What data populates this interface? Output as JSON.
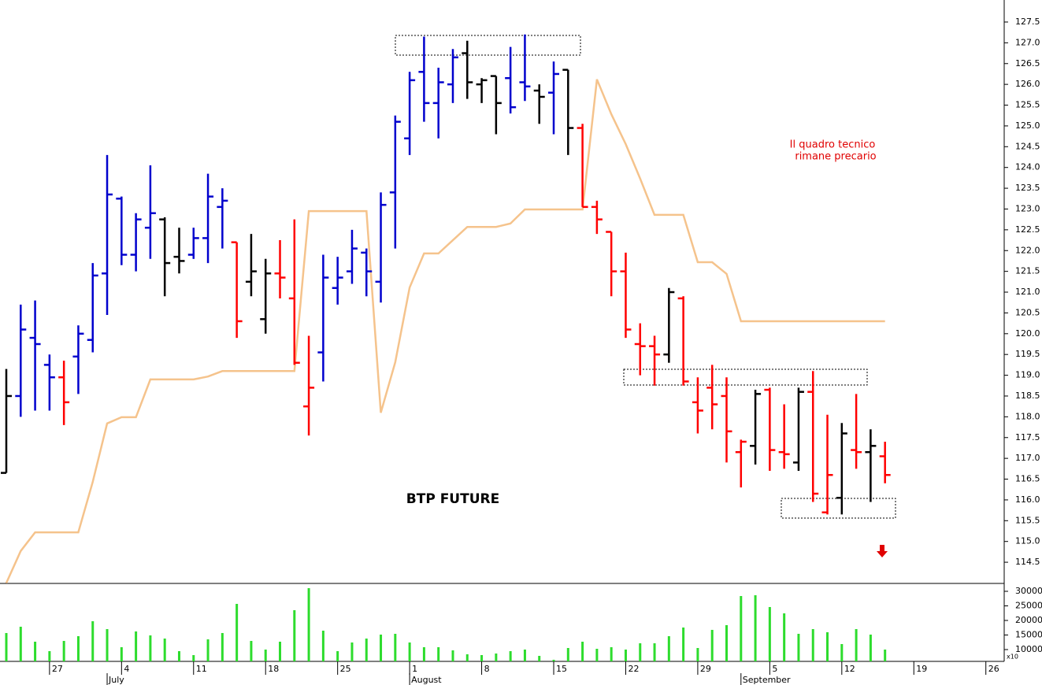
{
  "chart_data": [
    {
      "type": "ohlc",
      "title": "BTP FUTURE",
      "annotation": [
        "Il quadro tecnico",
        "rimane precario"
      ],
      "categories": [
        null,
        null,
        null,
        "27",
        null,
        null,
        null,
        null,
        "4",
        null,
        null,
        null,
        null,
        "11",
        null,
        null,
        null,
        null,
        "18",
        null,
        null,
        null,
        null,
        "25",
        null,
        null,
        null,
        null,
        "1",
        null,
        null,
        null,
        null,
        "8",
        null,
        null,
        null,
        null,
        "15",
        null,
        null,
        null,
        null,
        "22",
        null,
        null,
        null,
        null,
        "29",
        null,
        null,
        null,
        null,
        "5",
        null,
        null,
        null,
        null,
        "12",
        null,
        null,
        null,
        null,
        "19",
        null,
        null,
        null,
        null,
        "26",
        null
      ],
      "month_labels": [
        {
          "index": 7,
          "label": "July"
        },
        {
          "index": 28,
          "label": "August"
        },
        {
          "index": 51,
          "label": "September"
        }
      ],
      "open": [
        116.65,
        118.5,
        119.9,
        119.25,
        118.95,
        119.45,
        119.85,
        121.45,
        123.25,
        121.9,
        122.55,
        122.75,
        121.85,
        121.9,
        122.3,
        123.05,
        122.2,
        121.25,
        120.35,
        121.45,
        120.85,
        118.25,
        119.55,
        121.1,
        121.5,
        121.95,
        121.25,
        123.4,
        124.7,
        126.3,
        125.55,
        126.0,
        126.75,
        126.0,
        126.2,
        126.15,
        126.05,
        125.85,
        125.8,
        126.35,
        124.95,
        123.05,
        122.45,
        121.5,
        119.75,
        119.7,
        119.5,
        120.85,
        118.35,
        118.7,
        118.5,
        117.15,
        117.3,
        118.65,
        117.15,
        116.9,
        118.6,
        115.7,
        116.05,
        117.2,
        117.15,
        117.05,
        null,
        null,
        null,
        null,
        null,
        null,
        null,
        null
      ],
      "high": [
        119.15,
        120.7,
        120.8,
        119.5,
        119.35,
        120.2,
        121.7,
        124.3,
        123.3,
        122.9,
        124.05,
        122.8,
        122.55,
        122.55,
        123.85,
        123.5,
        122.2,
        122.4,
        121.8,
        122.25,
        122.75,
        119.95,
        121.9,
        121.85,
        122.5,
        122.05,
        123.4,
        125.25,
        126.3,
        127.15,
        126.4,
        126.85,
        127.05,
        126.15,
        126.2,
        126.9,
        127.2,
        126.0,
        126.55,
        126.35,
        125.05,
        123.2,
        122.45,
        121.95,
        120.25,
        119.95,
        121.1,
        120.9,
        118.95,
        119.25,
        118.95,
        117.45,
        118.65,
        118.7,
        118.3,
        118.7,
        119.1,
        118.05,
        117.85,
        118.55,
        117.7,
        117.4,
        null,
        null,
        null,
        null,
        null,
        null,
        null,
        null
      ],
      "low": [
        116.65,
        118.0,
        118.15,
        118.15,
        117.8,
        118.55,
        119.55,
        120.45,
        121.65,
        121.5,
        121.8,
        120.9,
        121.45,
        121.8,
        121.7,
        122.05,
        119.9,
        120.9,
        120.0,
        120.85,
        119.25,
        117.55,
        118.85,
        120.7,
        121.2,
        120.9,
        120.75,
        122.05,
        124.3,
        125.1,
        124.7,
        125.55,
        125.65,
        125.55,
        124.8,
        125.3,
        125.6,
        125.05,
        124.8,
        124.3,
        123.05,
        122.4,
        120.9,
        119.9,
        119.0,
        118.75,
        119.3,
        118.75,
        117.6,
        117.7,
        116.9,
        116.3,
        116.85,
        116.7,
        116.75,
        116.7,
        115.95,
        115.65,
        115.65,
        116.75,
        115.95,
        116.4,
        null,
        null,
        null,
        null,
        null,
        null,
        null,
        null
      ],
      "close": [
        118.5,
        120.1,
        119.75,
        118.95,
        118.35,
        120.0,
        121.4,
        123.35,
        121.9,
        122.75,
        122.9,
        121.7,
        121.75,
        122.3,
        123.3,
        123.2,
        120.3,
        121.5,
        121.45,
        121.35,
        119.3,
        118.7,
        121.35,
        121.35,
        122.05,
        121.5,
        123.1,
        125.1,
        126.1,
        125.55,
        126.05,
        126.65,
        126.05,
        126.1,
        125.55,
        125.45,
        125.95,
        125.7,
        126.25,
        124.95,
        123.05,
        122.75,
        121.5,
        120.1,
        119.7,
        119.5,
        121.0,
        118.85,
        118.15,
        118.3,
        117.65,
        117.4,
        118.55,
        117.2,
        117.1,
        118.6,
        116.15,
        116.6,
        117.6,
        117.15,
        117.3,
        116.6,
        null,
        null,
        null,
        null,
        null,
        null,
        null,
        null
      ],
      "bar_colors": [
        "black",
        "mediumblue",
        "mediumblue",
        "mediumblue",
        "red",
        "mediumblue",
        "mediumblue",
        "mediumblue",
        "mediumblue",
        "mediumblue",
        "mediumblue",
        "black",
        "black",
        "mediumblue",
        "mediumblue",
        "mediumblue",
        "red",
        "black",
        "black",
        "red",
        "red",
        "red",
        "mediumblue",
        "mediumblue",
        "mediumblue",
        "mediumblue",
        "mediumblue",
        "mediumblue",
        "mediumblue",
        "mediumblue",
        "mediumblue",
        "mediumblue",
        "black",
        "black",
        "black",
        "mediumblue",
        "mediumblue",
        "black",
        "mediumblue",
        "black",
        "red",
        "red",
        "red",
        "red",
        "red",
        "red",
        "black",
        "red",
        "red",
        "red",
        "red",
        "red",
        "black",
        "red",
        "red",
        "black",
        "red",
        "red",
        "black",
        "red",
        "black",
        "red",
        null,
        null,
        null,
        null,
        null,
        null,
        null,
        null
      ],
      "line": {
        "color": "#f5c38c",
        "values": [
          114.0,
          114.77,
          115.22,
          115.22,
          115.22,
          115.22,
          116.43,
          117.84,
          117.99,
          117.99,
          118.9,
          118.9,
          118.9,
          118.9,
          118.97,
          119.1,
          119.1,
          119.1,
          119.1,
          119.1,
          119.1,
          122.95,
          122.95,
          122.95,
          122.95,
          122.95,
          118.1,
          119.31,
          121.11,
          121.93,
          121.93,
          122.25,
          122.57,
          122.57,
          122.57,
          122.65,
          122.99,
          122.99,
          122.99,
          122.99,
          122.99,
          126.12,
          125.28,
          124.56,
          123.73,
          122.86,
          122.86,
          122.86,
          121.72,
          121.72,
          121.44,
          120.3,
          120.3,
          120.3,
          120.3,
          120.3,
          120.3,
          120.3,
          120.3,
          120.3,
          120.3,
          120.3,
          null,
          null,
          null,
          null,
          null,
          null,
          null,
          null
        ]
      },
      "ylim": [
        113.99,
        128.03
      ],
      "yticks": [
        114.5,
        {
          "value": 115,
          "label": "115.0"
        },
        115.5,
        {
          "value": 116,
          "label": "116.0"
        },
        116.5,
        {
          "value": 117,
          "label": "117.0"
        },
        117.5,
        {
          "value": 118,
          "label": "118.0"
        },
        118.5,
        {
          "value": 119,
          "label": "119.0"
        },
        119.5,
        {
          "value": 120,
          "label": "120.0"
        },
        120.5,
        {
          "value": 121,
          "label": "121.0"
        },
        121.5,
        {
          "value": 122,
          "label": "122.0"
        },
        122.5,
        {
          "value": 123,
          "label": "123.0"
        },
        123.5,
        {
          "value": 124,
          "label": "124.0"
        },
        124.5,
        {
          "value": 125,
          "label": "125.0"
        },
        125.5,
        {
          "value": 126,
          "label": "126.0"
        },
        126.5,
        {
          "value": 127,
          "label": "127.0"
        },
        127.5
      ]
    },
    {
      "type": "bar",
      "axis_note": "x10",
      "color": "#2ddc2d",
      "values": [
        15680,
        17840,
        12700,
        9460,
        12970,
        14600,
        19730,
        17030,
        10810,
        16220,
        14870,
        13780,
        9460,
        8100,
        13510,
        15680,
        25680,
        12970,
        10000,
        12700,
        23520,
        31080,
        16490,
        9460,
        12430,
        13780,
        15140,
        15410,
        12430,
        10810,
        10810,
        9730,
        8380,
        8110,
        8650,
        9460,
        10000,
        7840,
        6500,
        10540,
        12700,
        10270,
        10810,
        10000,
        12160,
        12160,
        14600,
        17570,
        10540,
        16760,
        18380,
        28380,
        28650,
        24600,
        22430,
        15410,
        17030,
        15950,
        11890,
        17030,
        15140,
        10000,
        null,
        null,
        null,
        null,
        null,
        null,
        null,
        null
      ],
      "ylim": [
        5946,
        32703
      ],
      "yticks": [
        10000,
        15000,
        20000,
        25000,
        30000
      ]
    }
  ]
}
